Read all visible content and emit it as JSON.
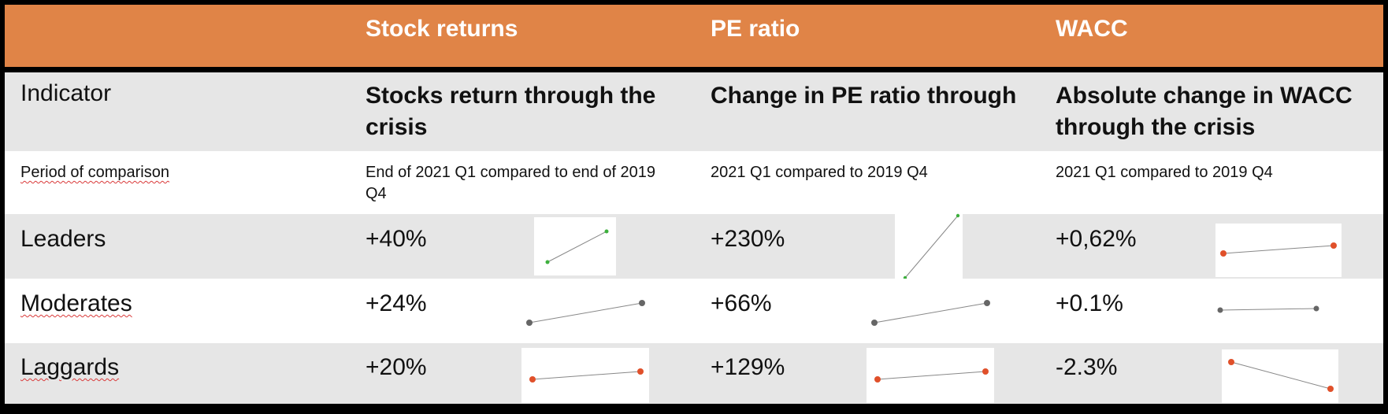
{
  "header": {
    "col1": "",
    "col2": "Stock returns",
    "col3": "PE ratio",
    "col4": "WACC"
  },
  "indicator_row": {
    "label": "Indicator",
    "stock": "Stocks return through the crisis",
    "pe": "Change in PE ratio through",
    "wacc": "Absolute change in WACC through the crisis"
  },
  "period_row": {
    "label": "Period of comparison",
    "stock": "End of 2021 Q1 compared to end of 2019 Q4",
    "pe": "2021 Q1 compared to 2019 Q4",
    "wacc": "2021 Q1 compared to 2019 Q4"
  },
  "groups": [
    {
      "name": "Leaders",
      "stock": "+40%",
      "pe": "+230%",
      "wacc": "+0,62%",
      "spark_colors": {
        "stock": "#3db03d",
        "pe": "#3db03d",
        "wacc": "#e0502a"
      }
    },
    {
      "name": "Moderates",
      "stock": "+24%",
      "pe": "+66%",
      "wacc": "+0.1%",
      "spark_colors": {
        "stock": "#666666",
        "pe": "#666666",
        "wacc": "#666666"
      }
    },
    {
      "name": "Laggards",
      "stock": "+20%",
      "pe": "+129%",
      "wacc": "-2.3%",
      "spark_colors": {
        "stock": "#e0502a",
        "pe": "#e0502a",
        "wacc": "#e0502a"
      }
    }
  ],
  "colors": {
    "header_bg": "#e08447",
    "row_gray": "#e6e6e6",
    "spell_underline": "#d93a3a"
  }
}
